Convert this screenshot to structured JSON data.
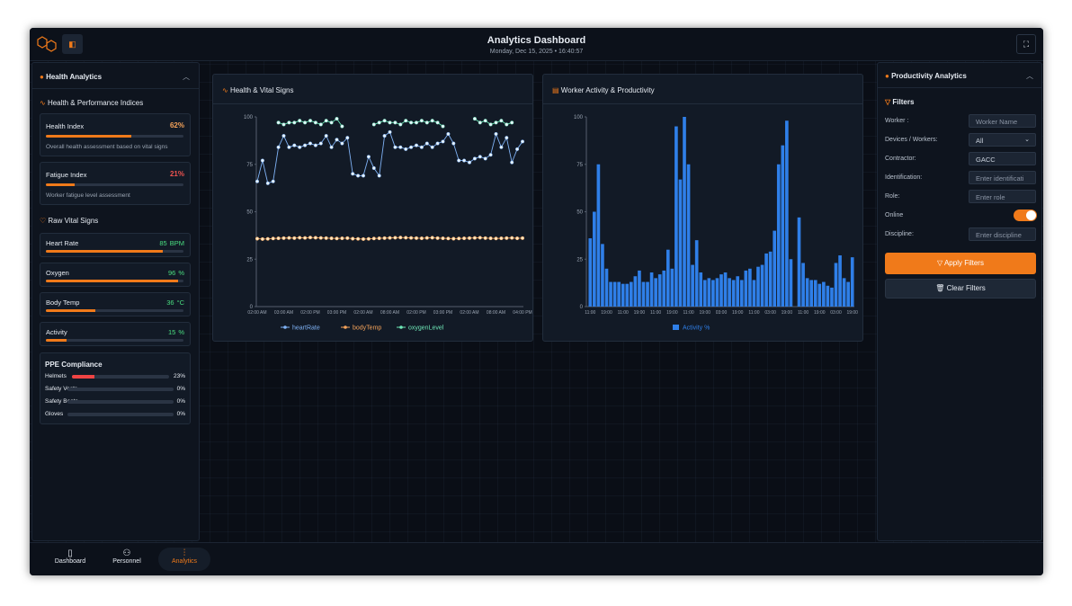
{
  "header": {
    "title": "Analytics Dashboard",
    "subtitle": "Monday, Dec 15, 2025 • 16:40:57"
  },
  "health_panel": {
    "title": "Health Analytics",
    "indices": {
      "title": "Health & Performance Indices",
      "items": [
        {
          "name": "Health Index",
          "value": 62,
          "unit": "%",
          "description": "Overall health assessment based on vital signs"
        },
        {
          "name": "Fatigue Index",
          "value": 21,
          "unit": "%",
          "description": "Worker fatigue level assessment"
        }
      ]
    },
    "vitals": {
      "title": "Raw Vital Signs",
      "items": [
        {
          "name": "Heart Rate",
          "value": 85,
          "unit": "BPM"
        },
        {
          "name": "Oxygen",
          "value": 96,
          "unit": "%"
        },
        {
          "name": "Body Temp",
          "value": 36,
          "unit": "°C"
        },
        {
          "name": "Activity",
          "value": 15,
          "unit": "%"
        }
      ]
    },
    "ppe": {
      "title": "PPE Compliance",
      "unit": "%",
      "items": [
        {
          "name": "Helmets",
          "value": 23
        },
        {
          "name": "Safety Vests",
          "value": 0
        },
        {
          "name": "Safety Boots",
          "value": 0
        },
        {
          "name": "Gloves",
          "value": 0
        }
      ]
    }
  },
  "chart_data": [
    {
      "type": "line",
      "title": "Health & Vital Signs",
      "categories": [
        "02:00 AM",
        null,
        null,
        null,
        null,
        "03:00 AM",
        null,
        null,
        null,
        null,
        "02:00 PM",
        null,
        null,
        null,
        null,
        "03:00 PM",
        null,
        null,
        null,
        null,
        "02:00 AM",
        null,
        null,
        null,
        null,
        "08:00 AM",
        null,
        null,
        null,
        null,
        "02:00 PM",
        null,
        null,
        null,
        null,
        "03:00 PM",
        null,
        null,
        null,
        null,
        "02:00 AM",
        null,
        null,
        null,
        null,
        "08:00 AM",
        null,
        null,
        null,
        null,
        "04:00 PM"
      ],
      "ylim": [
        0,
        100
      ],
      "yticks": [
        0,
        25,
        50,
        75,
        100
      ],
      "series": [
        {
          "name": "heartRate",
          "color": "#7fb2f5",
          "values": [
            66,
            77,
            65,
            66,
            84,
            90,
            84,
            85,
            84,
            85,
            86,
            85,
            86,
            90,
            84,
            88,
            86,
            89,
            70,
            69,
            69,
            79,
            73,
            69,
            90,
            92,
            84,
            84,
            83,
            84,
            85,
            84,
            86,
            84,
            86,
            87,
            91,
            86,
            77,
            77,
            76,
            78,
            79,
            78,
            80,
            91,
            84,
            89,
            76,
            83,
            87
          ]
        },
        {
          "name": "bodyTemp",
          "color": "#f5a35a",
          "values": [
            35.8,
            35.6,
            35.7,
            35.9,
            36,
            36.1,
            36.2,
            36.1,
            36.3,
            36.2,
            36.4,
            36.3,
            36.2,
            36.1,
            36,
            35.9,
            36,
            36.1,
            35.8,
            35.7,
            35.6,
            35.7,
            35.9,
            36,
            36.1,
            36.2,
            36.3,
            36.4,
            36.3,
            36.2,
            36.1,
            36,
            36.2,
            36.3,
            36.1,
            36,
            35.9,
            35.8,
            35.9,
            36,
            36.1,
            36.2,
            36.3,
            36.1,
            36,
            35.9,
            36,
            36.1,
            36.2,
            36,
            36.1
          ]
        },
        {
          "name": "oxygenLevel",
          "color": "#6ee7b7",
          "values": [
            null,
            null,
            null,
            null,
            97,
            96,
            97,
            97,
            98,
            97,
            98,
            97,
            96,
            98,
            97,
            99,
            95,
            null,
            null,
            null,
            null,
            null,
            96,
            97,
            98,
            97,
            97,
            96,
            98,
            97,
            97,
            98,
            97,
            98,
            97,
            95,
            null,
            null,
            null,
            null,
            null,
            99,
            97,
            98,
            96,
            97,
            98,
            96,
            97,
            null,
            null
          ]
        }
      ]
    },
    {
      "type": "bar",
      "title": "Worker Activity & Productivity",
      "categories": [
        "11:00",
        null,
        null,
        null,
        "19:00",
        null,
        null,
        null,
        "11:00",
        null,
        null,
        null,
        "19:00",
        null,
        null,
        null,
        "11:00",
        null,
        null,
        null,
        "19:00",
        null,
        null,
        null,
        "11:00",
        null,
        null,
        null,
        "19:00",
        null,
        null,
        null,
        "03:00",
        null,
        null,
        null,
        "19:00",
        null,
        null,
        null,
        "11:00",
        null,
        null,
        null,
        "03:00",
        null,
        null,
        null,
        "19:00",
        null,
        null,
        null,
        "11:00",
        null,
        null,
        null,
        "19:00",
        null,
        null,
        null,
        "03:00",
        null,
        null,
        null,
        "19:00"
      ],
      "ylim": [
        0,
        100
      ],
      "yticks": [
        0,
        25,
        50,
        75,
        100
      ],
      "series": [
        {
          "name": "Activity %",
          "color": "#2f7fe8",
          "values": [
            36,
            50,
            75,
            33,
            20,
            13,
            13,
            13,
            12,
            12,
            13,
            16,
            19,
            13,
            13,
            18,
            15,
            17,
            19,
            30,
            20,
            95,
            67,
            100,
            75,
            22,
            35,
            18,
            14,
            15,
            14,
            15,
            17,
            18,
            15,
            14,
            16,
            14,
            19,
            20,
            14,
            21,
            22,
            28,
            29,
            40,
            75,
            85,
            98,
            25,
            0,
            47,
            23,
            15,
            14,
            14,
            12,
            13,
            11,
            10,
            23,
            27,
            15,
            13,
            26
          ]
        }
      ]
    }
  ],
  "productivity_panel": {
    "title": "Productivity Analytics",
    "filters_title": "Filters",
    "fields": [
      {
        "label": "Worker :",
        "placeholder": "Worker Name"
      },
      {
        "label": "Devices / Workers:",
        "value": "All"
      },
      {
        "label": "Contractor:",
        "value": "GACC"
      },
      {
        "label": "Identification:",
        "placeholder": "Enter identificati"
      },
      {
        "label": "Role:",
        "placeholder": "Enter role"
      },
      {
        "label": "Online"
      },
      {
        "label": "Discipline:",
        "placeholder": "Enter discipline"
      }
    ],
    "apply": "Apply Filters",
    "clear": "Clear Filters"
  },
  "nav": [
    "Dashboard",
    "Personnel",
    "Analytics"
  ]
}
